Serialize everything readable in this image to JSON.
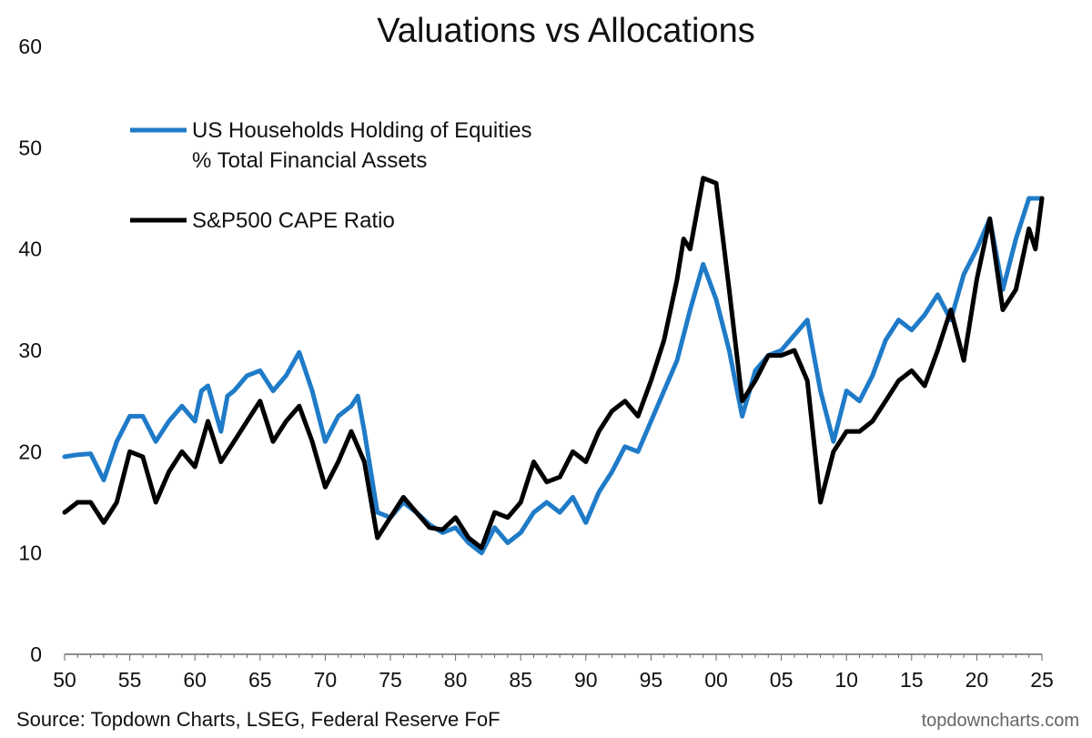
{
  "chart_data": {
    "type": "line",
    "title": "Valuations vs Allocations",
    "xlabel": "",
    "ylabel": "",
    "xlim": [
      1950,
      2025
    ],
    "ylim": [
      0,
      60
    ],
    "y_ticks": [
      "0",
      "10",
      "20",
      "30",
      "40",
      "50",
      "60"
    ],
    "x_ticks": [
      {
        "x": 1950,
        "label": "50"
      },
      {
        "x": 1955,
        "label": "55"
      },
      {
        "x": 1960,
        "label": "60"
      },
      {
        "x": 1965,
        "label": "65"
      },
      {
        "x": 1970,
        "label": "70"
      },
      {
        "x": 1975,
        "label": "75"
      },
      {
        "x": 1980,
        "label": "80"
      },
      {
        "x": 1985,
        "label": "85"
      },
      {
        "x": 1990,
        "label": "90"
      },
      {
        "x": 1995,
        "label": "95"
      },
      {
        "x": 2000,
        "label": "00"
      },
      {
        "x": 2005,
        "label": "05"
      },
      {
        "x": 2010,
        "label": "10"
      },
      {
        "x": 2015,
        "label": "15"
      },
      {
        "x": 2020,
        "label": "20"
      },
      {
        "x": 2025,
        "label": "25"
      }
    ],
    "grid": false,
    "legend_placement": "top-left",
    "series": [
      {
        "name_lines": [
          "US Households Holding of Equities",
          "% Total Financial Assets"
        ],
        "color": "#1f7bc8",
        "points": [
          [
            1950,
            19.5
          ],
          [
            1951,
            19.7
          ],
          [
            1952,
            19.8
          ],
          [
            1953,
            17.2
          ],
          [
            1954,
            21
          ],
          [
            1955,
            23.5
          ],
          [
            1956,
            23.5
          ],
          [
            1957,
            21
          ],
          [
            1958,
            23
          ],
          [
            1959,
            24.5
          ],
          [
            1960,
            23
          ],
          [
            1960.5,
            26
          ],
          [
            1961,
            26.5
          ],
          [
            1962,
            22
          ],
          [
            1962.5,
            25.5
          ],
          [
            1963,
            26
          ],
          [
            1964,
            27.5
          ],
          [
            1965,
            28
          ],
          [
            1966,
            26
          ],
          [
            1967,
            27.5
          ],
          [
            1968,
            29.8
          ],
          [
            1969,
            26
          ],
          [
            1970,
            21
          ],
          [
            1971,
            23.5
          ],
          [
            1972,
            24.5
          ],
          [
            1972.5,
            25.5
          ],
          [
            1973,
            22
          ],
          [
            1974,
            14
          ],
          [
            1975,
            13.5
          ],
          [
            1976,
            15
          ],
          [
            1977,
            14
          ],
          [
            1978,
            12.8
          ],
          [
            1979,
            12
          ],
          [
            1980,
            12.5
          ],
          [
            1981,
            11
          ],
          [
            1982,
            10
          ],
          [
            1983,
            12.5
          ],
          [
            1984,
            11
          ],
          [
            1985,
            12
          ],
          [
            1986,
            14
          ],
          [
            1987,
            15
          ],
          [
            1988,
            14
          ],
          [
            1989,
            15.5
          ],
          [
            1990,
            13
          ],
          [
            1991,
            16
          ],
          [
            1992,
            18
          ],
          [
            1993,
            20.5
          ],
          [
            1994,
            20
          ],
          [
            1995,
            23
          ],
          [
            1996,
            26
          ],
          [
            1997,
            29
          ],
          [
            1998,
            34
          ],
          [
            1999,
            38.5
          ],
          [
            2000,
            35
          ],
          [
            2001,
            30
          ],
          [
            2002,
            23.5
          ],
          [
            2003,
            28
          ],
          [
            2004,
            29.5
          ],
          [
            2005,
            30
          ],
          [
            2006,
            31.5
          ],
          [
            2007,
            33
          ],
          [
            2008,
            26
          ],
          [
            2009,
            21
          ],
          [
            2010,
            26
          ],
          [
            2011,
            25
          ],
          [
            2012,
            27.5
          ],
          [
            2013,
            31
          ],
          [
            2014,
            33
          ],
          [
            2015,
            32
          ],
          [
            2016,
            33.5
          ],
          [
            2017,
            35.5
          ],
          [
            2018,
            33
          ],
          [
            2019,
            37.5
          ],
          [
            2020,
            40
          ],
          [
            2021,
            43
          ],
          [
            2022,
            36
          ],
          [
            2023,
            41
          ],
          [
            2024,
            45
          ],
          [
            2025,
            45
          ]
        ]
      },
      {
        "name_lines": [
          "S&P500 CAPE Ratio"
        ],
        "color": "#000000",
        "points": [
          [
            1950,
            14
          ],
          [
            1951,
            15
          ],
          [
            1952,
            15
          ],
          [
            1953,
            13
          ],
          [
            1954,
            15
          ],
          [
            1955,
            20
          ],
          [
            1956,
            19.5
          ],
          [
            1957,
            15
          ],
          [
            1958,
            18
          ],
          [
            1959,
            20
          ],
          [
            1960,
            18.5
          ],
          [
            1961,
            23
          ],
          [
            1962,
            19
          ],
          [
            1963,
            21
          ],
          [
            1964,
            23
          ],
          [
            1965,
            25
          ],
          [
            1966,
            21
          ],
          [
            1967,
            23
          ],
          [
            1968,
            24.5
          ],
          [
            1969,
            21
          ],
          [
            1970,
            16.5
          ],
          [
            1971,
            19
          ],
          [
            1972,
            22
          ],
          [
            1973,
            19
          ],
          [
            1974,
            11.5
          ],
          [
            1975,
            13.5
          ],
          [
            1976,
            15.5
          ],
          [
            1977,
            14
          ],
          [
            1978,
            12.5
          ],
          [
            1979,
            12.3
          ],
          [
            1980,
            13.5
          ],
          [
            1981,
            11.5
          ],
          [
            1982,
            10.5
          ],
          [
            1983,
            14
          ],
          [
            1984,
            13.5
          ],
          [
            1985,
            15
          ],
          [
            1986,
            19
          ],
          [
            1987,
            17
          ],
          [
            1988,
            17.5
          ],
          [
            1989,
            20
          ],
          [
            1990,
            19
          ],
          [
            1991,
            22
          ],
          [
            1992,
            24
          ],
          [
            1993,
            25
          ],
          [
            1994,
            23.5
          ],
          [
            1995,
            27
          ],
          [
            1996,
            31
          ],
          [
            1997,
            37
          ],
          [
            1997.5,
            41
          ],
          [
            1998,
            40
          ],
          [
            1999,
            47
          ],
          [
            2000,
            46.5
          ],
          [
            2001,
            36
          ],
          [
            2002,
            25
          ],
          [
            2003,
            27
          ],
          [
            2004,
            29.5
          ],
          [
            2005,
            29.5
          ],
          [
            2006,
            30
          ],
          [
            2007,
            27
          ],
          [
            2008,
            15
          ],
          [
            2009,
            20
          ],
          [
            2010,
            22
          ],
          [
            2011,
            22
          ],
          [
            2012,
            23
          ],
          [
            2013,
            25
          ],
          [
            2014,
            27
          ],
          [
            2015,
            28
          ],
          [
            2016,
            26.5
          ],
          [
            2017,
            30
          ],
          [
            2018,
            34
          ],
          [
            2019,
            29
          ],
          [
            2020,
            37
          ],
          [
            2021,
            43
          ],
          [
            2022,
            34
          ],
          [
            2023,
            36
          ],
          [
            2024,
            42
          ],
          [
            2024.5,
            40
          ],
          [
            2025,
            45
          ]
        ]
      }
    ]
  },
  "footer": {
    "source": "Source: Topdown Charts, LSEG, Federal Reserve FoF",
    "site": "topdowncharts.com"
  }
}
